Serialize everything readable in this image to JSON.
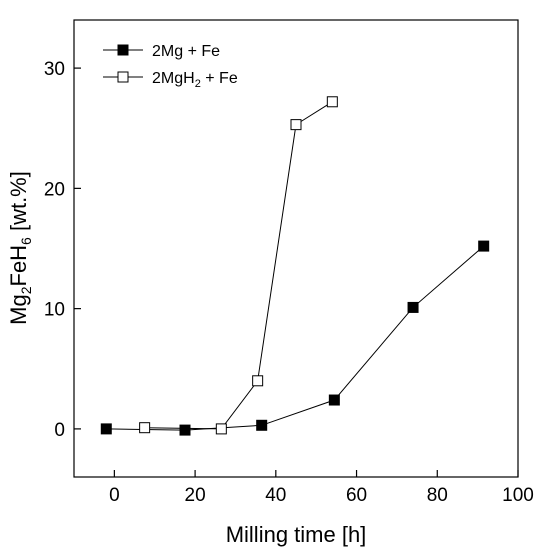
{
  "chart_data": {
    "type": "line",
    "xlabel": "Milling time [h]",
    "ylabel": {
      "a": "Mg",
      "s1": "2",
      "b": "FeH",
      "s2": "6",
      "c": " [wt.%]"
    },
    "xlim": [
      -10,
      100
    ],
    "ylim": [
      -4,
      34
    ],
    "xticks": [
      0,
      20,
      40,
      60,
      80,
      100
    ],
    "yticks": [
      0,
      10,
      20,
      30
    ],
    "grid": false,
    "legend_position": "top-left",
    "series": [
      {
        "name": "2Mg + Fe",
        "label_parts": {
          "a": "2Mg + Fe"
        },
        "marker": "filled-square",
        "color": "#000000",
        "x": [
          -2,
          17.5,
          36.5,
          54.5,
          74,
          91.5
        ],
        "y": [
          0.0,
          -0.1,
          0.3,
          2.4,
          10.1,
          15.2
        ]
      },
      {
        "name": "2MgH2 + Fe",
        "label_parts": {
          "a": "2MgH",
          "s": "2",
          "b": " + Fe"
        },
        "marker": "open-square",
        "color": "#000000",
        "x": [
          7.5,
          26.5,
          35.5,
          45,
          54
        ],
        "y": [
          0.1,
          0.0,
          4.0,
          25.3,
          27.2
        ]
      }
    ]
  }
}
